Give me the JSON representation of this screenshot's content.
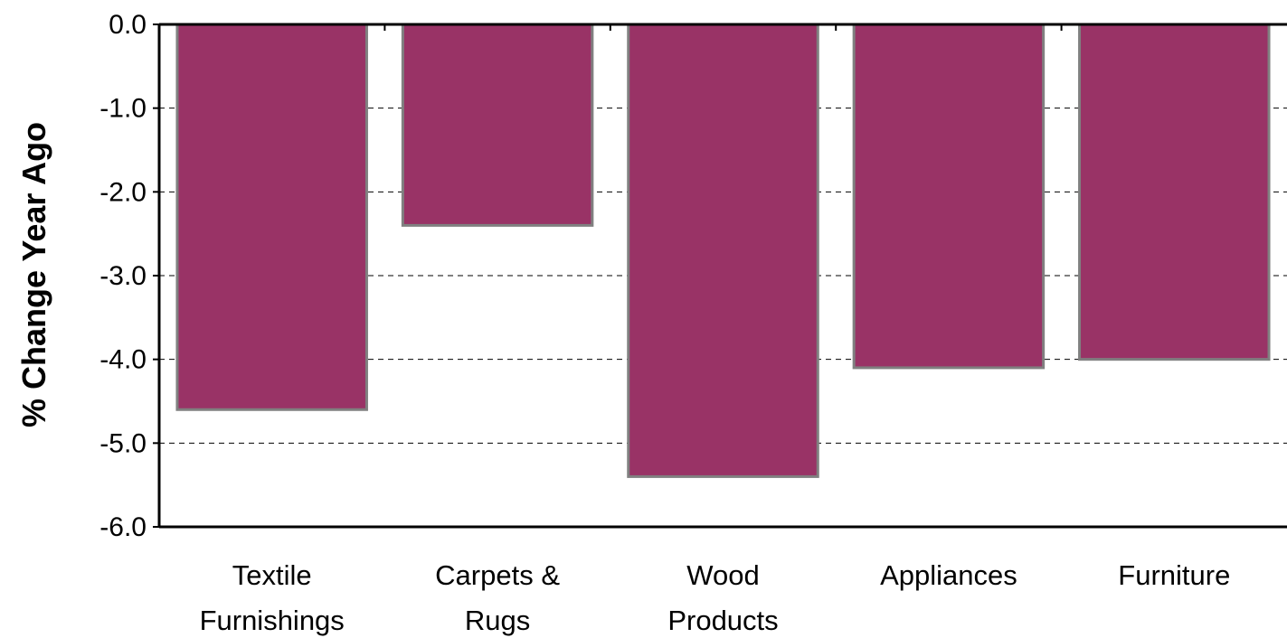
{
  "chart_data": {
    "type": "bar",
    "title": "",
    "xlabel": "",
    "ylabel": "% Change Year Ago",
    "categories": [
      [
        "Textile",
        "Furnishings"
      ],
      [
        "Carpets &",
        "Rugs"
      ],
      [
        "Wood",
        "Products"
      ],
      [
        "Appliances"
      ],
      [
        "Furniture"
      ]
    ],
    "values": [
      -4.6,
      -2.4,
      -5.4,
      -4.1,
      -4.0
    ],
    "ylim": [
      -6.0,
      0.0
    ],
    "yticks": [
      "0.0",
      "-1.0",
      "-2.0",
      "-3.0",
      "-4.0",
      "-5.0",
      "-6.0"
    ],
    "grid": "horizontal-dashed",
    "legend": "none"
  },
  "colors": {
    "bar_fill": "#993366",
    "bar_stroke": "#808080",
    "axis": "#000000",
    "grid": "#000000"
  }
}
